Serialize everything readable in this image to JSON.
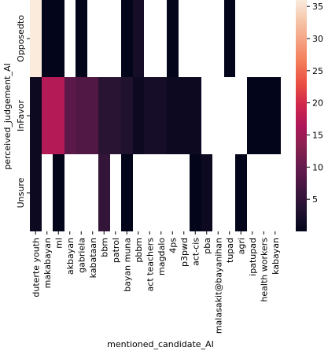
{
  "chart_data": {
    "type": "heatmap",
    "xlabel": "mentioned_candidate_AI",
    "ylabel": "perceived_judgement_AI",
    "x_categories": [
      "duterte youth",
      "makabayan",
      "ml",
      "akbayan",
      "gabriela",
      "kabataan",
      "bbm",
      "patrol",
      "bayan muna",
      "pbbm",
      "act teachers",
      "magdalo",
      "4ps",
      "p3pwd",
      "act-cis",
      "pba",
      "malasakit@bayanihan",
      "tupad",
      "agri",
      "ipatupad",
      "health workers",
      "kabayan"
    ],
    "y_categories": [
      "Opposedto",
      "InFavor",
      "Unsure"
    ],
    "values": [
      [
        36,
        0,
        0,
        null,
        0,
        null,
        null,
        null,
        0,
        2,
        null,
        null,
        0,
        null,
        null,
        null,
        null,
        0,
        null,
        null,
        null,
        null
      ],
      [
        1,
        17,
        17,
        9,
        8,
        8,
        4,
        4,
        3,
        1,
        2,
        2,
        1,
        1,
        1,
        null,
        null,
        null,
        null,
        0,
        0,
        0
      ],
      [
        1,
        null,
        0,
        null,
        null,
        null,
        5,
        null,
        0,
        null,
        null,
        null,
        null,
        null,
        0,
        1,
        null,
        null,
        0,
        null,
        null,
        null
      ]
    ],
    "colorbar": {
      "min": 0,
      "max": 36,
      "ticks": [
        5,
        10,
        15,
        20,
        25,
        30,
        35
      ]
    },
    "colormap": [
      "#03051a",
      "#221331",
      "#41163f",
      "#641a4d",
      "#87214f",
      "#ad1759",
      "#d0264c",
      "#ea4d42",
      "#f37a58",
      "#f5a07f",
      "#f6c4a8",
      "#faebdd"
    ]
  }
}
